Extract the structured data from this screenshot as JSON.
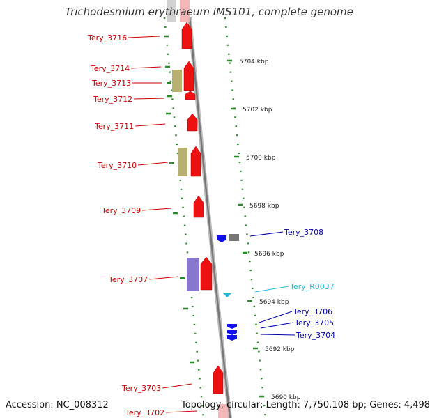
{
  "title": "Trichodesmium erythraeum IMS101, complete genome",
  "footer": {
    "accession": "Accession: NC_008312",
    "summary": "Topology: circular; Length: 7,750,108 bp; Genes: 4,498"
  },
  "scale_labels": [
    "5704 kbp",
    "5702 kbp",
    "5700 kbp",
    "5698 kbp",
    "5696 kbp",
    "5694 kbp",
    "5692 kbp",
    "5690 kbp"
  ],
  "gene_labels": [
    {
      "label": "Tery_3716",
      "color": "#cc0000"
    },
    {
      "label": "Tery_3714",
      "color": "#cc0000"
    },
    {
      "label": "Tery_3713",
      "color": "#cc0000"
    },
    {
      "label": "Tery_3712",
      "color": "#cc0000"
    },
    {
      "label": "Tery_3711",
      "color": "#cc0000"
    },
    {
      "label": "Tery_3710",
      "color": "#cc0000"
    },
    {
      "label": "Tery_3709",
      "color": "#cc0000"
    },
    {
      "label": "Tery_3708",
      "color": "#0000aa"
    },
    {
      "label": "Tery_3707",
      "color": "#cc0000"
    },
    {
      "label": "Tery_R0037",
      "color": "#22bbdd"
    },
    {
      "label": "Tery_3706",
      "color": "#0000aa"
    },
    {
      "label": "Tery_3705",
      "color": "#0000aa"
    },
    {
      "label": "Tery_3704",
      "color": "#0000aa"
    },
    {
      "label": "Tery_3703",
      "color": "#cc0000"
    },
    {
      "label": "Tery_3702",
      "color": "#cc0000"
    }
  ],
  "colors": {
    "forward_gene": "#ee1111",
    "reverse_gene": "#1111ee",
    "rna": "#22bbdd",
    "cog_olive": "#b8b070",
    "cog_lavender": "#8877cc",
    "grey_gene": "#777777",
    "tick_green": "#2a8a2a",
    "backbone": "#8c8c8c"
  }
}
